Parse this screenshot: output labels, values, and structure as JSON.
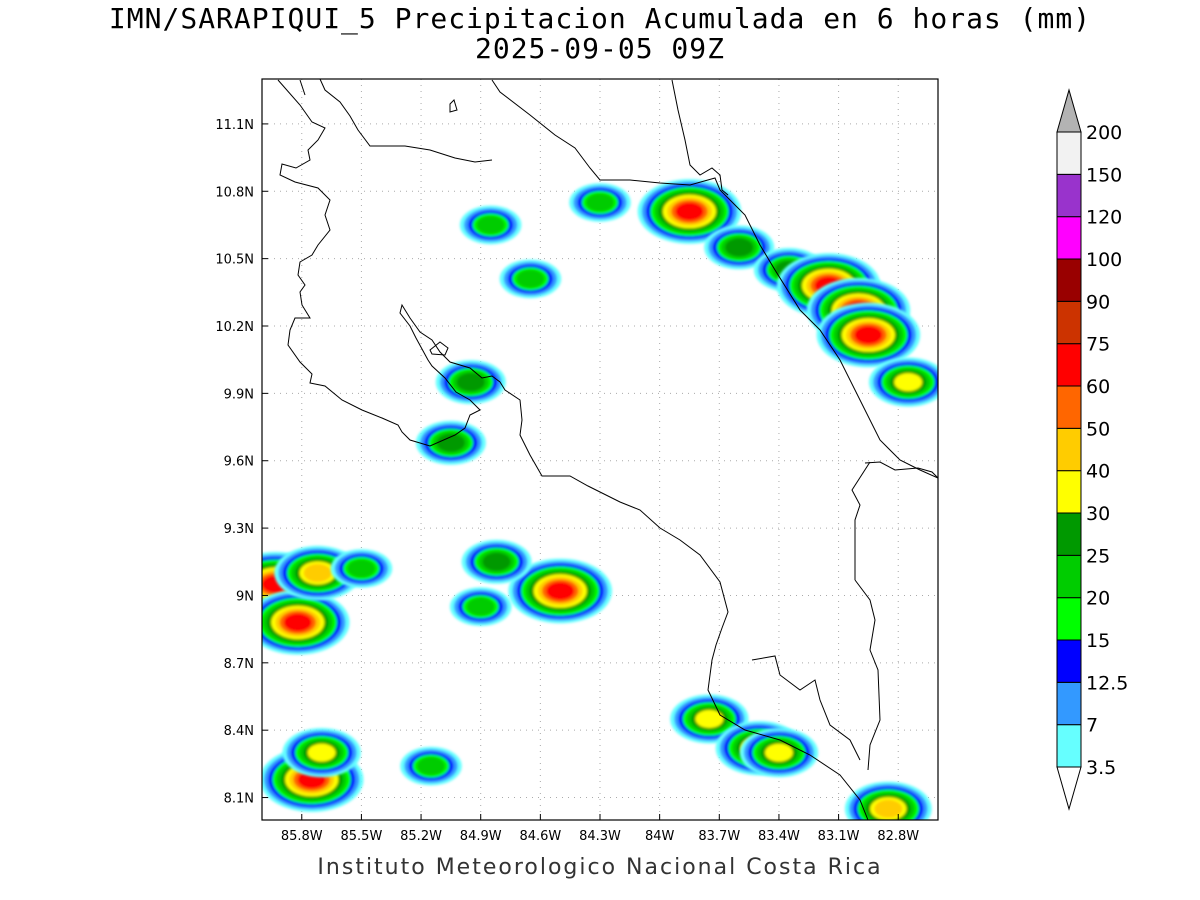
{
  "title": {
    "line1": "IMN/SARAPIQUI_5 Precipitacion Acumulada en 6 horas (mm)",
    "line2": "2025-09-05 09Z"
  },
  "credit": "Instituto Meteorologico Nacional Costa Rica",
  "axes": {
    "lon_range": [
      -86.0,
      -82.6
    ],
    "lat_range": [
      8.0,
      11.3
    ],
    "x_ticks": [
      "85.8W",
      "85.5W",
      "85.2W",
      "84.9W",
      "84.6W",
      "84.3W",
      "84W",
      "83.7W",
      "83.4W",
      "83.1W",
      "82.8W"
    ],
    "y_ticks": [
      "11.1N",
      "10.8N",
      "10.5N",
      "10.2N",
      "9.9N",
      "9.6N",
      "9.3N",
      "9N",
      "8.7N",
      "8.4N",
      "8.1N"
    ],
    "grid": "dotted"
  },
  "colorbar": {
    "labels": [
      "3.5",
      "7",
      "12.5",
      "15",
      "20",
      "25",
      "30",
      "40",
      "50",
      "60",
      "75",
      "90",
      "100",
      "120",
      "150",
      "200"
    ],
    "colors": [
      "#66ffff",
      "#3399ff",
      "#0000ff",
      "#00ff00",
      "#00cc00",
      "#009900",
      "#ffff00",
      "#ffcc00",
      "#ff6600",
      "#ff0000",
      "#cc3300",
      "#990000",
      "#ff00ff",
      "#9933cc",
      "#f2f2f2",
      "#b3b3b3"
    ]
  },
  "rain_cells": [
    {
      "lon": -84.3,
      "lat": 10.75,
      "level": 4
    },
    {
      "lon": -83.85,
      "lat": 10.71,
      "level": 9
    },
    {
      "lon": -83.6,
      "lat": 10.55,
      "level": 5
    },
    {
      "lon": -83.35,
      "lat": 10.45,
      "level": 5
    },
    {
      "lon": -83.15,
      "lat": 10.38,
      "level": 9
    },
    {
      "lon": -83.0,
      "lat": 10.27,
      "level": 9
    },
    {
      "lon": -82.95,
      "lat": 10.16,
      "level": 9
    },
    {
      "lon": -82.75,
      "lat": 9.95,
      "level": 6
    },
    {
      "lon": -84.85,
      "lat": 10.65,
      "level": 4
    },
    {
      "lon": -84.65,
      "lat": 10.41,
      "level": 4
    },
    {
      "lon": -84.95,
      "lat": 9.95,
      "level": 5
    },
    {
      "lon": -85.05,
      "lat": 9.68,
      "level": 5
    },
    {
      "lon": -85.93,
      "lat": 9.05,
      "level": 9
    },
    {
      "lon": -85.82,
      "lat": 8.88,
      "level": 9
    },
    {
      "lon": -85.72,
      "lat": 9.1,
      "level": 7
    },
    {
      "lon": -85.5,
      "lat": 9.12,
      "level": 4
    },
    {
      "lon": -84.5,
      "lat": 9.02,
      "level": 9
    },
    {
      "lon": -84.82,
      "lat": 9.15,
      "level": 5
    },
    {
      "lon": -84.9,
      "lat": 8.95,
      "level": 4
    },
    {
      "lon": -83.75,
      "lat": 8.45,
      "level": 6
    },
    {
      "lon": -83.5,
      "lat": 8.32,
      "level": 7
    },
    {
      "lon": -83.4,
      "lat": 8.3,
      "level": 6
    },
    {
      "lon": -85.75,
      "lat": 8.18,
      "level": 9
    },
    {
      "lon": -85.7,
      "lat": 8.3,
      "level": 6
    },
    {
      "lon": -85.15,
      "lat": 8.24,
      "level": 4
    },
    {
      "lon": -82.85,
      "lat": 8.05,
      "level": 7
    }
  ]
}
